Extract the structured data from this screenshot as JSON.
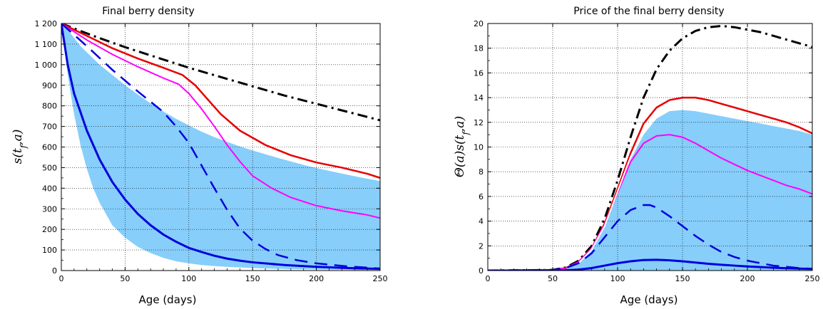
{
  "chart_data": [
    {
      "type": "line",
      "title": "Final berry density",
      "xlabel": "Age (days)",
      "ylabel": "s(t_f,a)",
      "xlim": [
        0,
        250
      ],
      "ylim": [
        0,
        1200
      ],
      "xticks": [
        0,
        50,
        100,
        150,
        200,
        250
      ],
      "xtick_labels": [
        "0",
        "50",
        "100",
        "150",
        "200",
        "250"
      ],
      "yticks": [
        0,
        100,
        200,
        300,
        400,
        500,
        600,
        700,
        800,
        900,
        1000,
        1100,
        1200
      ],
      "ytick_labels": [
        "0",
        "100",
        "200",
        "300",
        "400",
        "500",
        "600",
        "700",
        "800",
        "900",
        "1 000",
        "1 100",
        "1 200"
      ],
      "grid": true,
      "band": {
        "color": "#87cefa",
        "x": [
          0,
          5,
          10,
          15,
          20,
          25,
          30,
          40,
          50,
          60,
          70,
          80,
          90,
          100,
          110,
          120,
          130,
          140,
          150,
          160,
          170,
          180,
          190,
          200,
          210,
          220,
          230,
          240,
          250
        ],
        "lower": [
          1200,
          950,
          760,
          610,
          495,
          400,
          330,
          220,
          160,
          115,
          85,
          62,
          45,
          35,
          27,
          22,
          18,
          15,
          12,
          10,
          8,
          7,
          6,
          5,
          4,
          4,
          3,
          3,
          3
        ],
        "upper": [
          1200,
          1170,
          1130,
          1090,
          1060,
          1030,
          1000,
          950,
          900,
          855,
          812,
          773,
          737,
          705,
          675,
          648,
          625,
          603,
          583,
          565,
          547,
          530,
          513,
          498,
          484,
          471,
          458,
          446,
          435
        ]
      },
      "series": [
        {
          "color": "#000000",
          "dash": "dashdot",
          "width": 3,
          "x": [
            0,
            25,
            50,
            75,
            100,
            125,
            150,
            175,
            200,
            225,
            250
          ],
          "y": [
            1200,
            1140,
            1085,
            1035,
            985,
            940,
            895,
            850,
            810,
            770,
            730
          ]
        },
        {
          "color": "#e60000",
          "dash": "solid",
          "width": 2.5,
          "x": [
            0,
            20,
            40,
            60,
            80,
            95,
            105,
            115,
            125,
            140,
            160,
            180,
            200,
            220,
            240,
            250
          ],
          "y": [
            1200,
            1140,
            1080,
            1030,
            985,
            950,
            900,
            830,
            760,
            680,
            610,
            560,
            525,
            500,
            470,
            450
          ]
        },
        {
          "color": "#ff00ff",
          "dash": "solid",
          "width": 2,
          "x": [
            0,
            20,
            40,
            60,
            80,
            92,
            100,
            110,
            120,
            130,
            140,
            150,
            165,
            180,
            200,
            220,
            240,
            250
          ],
          "y": [
            1200,
            1120,
            1050,
            990,
            935,
            905,
            860,
            785,
            700,
            610,
            530,
            460,
            400,
            355,
            315,
            290,
            270,
            255
          ]
        },
        {
          "color": "#0000dd",
          "dash": "dashed",
          "width": 2.5,
          "x": [
            0,
            20,
            40,
            60,
            80,
            90,
            100,
            110,
            120,
            130,
            140,
            150,
            160,
            170,
            185,
            200,
            225,
            250
          ],
          "y": [
            1200,
            1090,
            975,
            870,
            770,
            700,
            620,
            510,
            400,
            295,
            205,
            145,
            105,
            75,
            50,
            35,
            20,
            10
          ]
        },
        {
          "color": "#0000dd",
          "dash": "solid",
          "width": 3,
          "x": [
            0,
            5,
            10,
            20,
            30,
            40,
            50,
            60,
            70,
            80,
            90,
            100,
            110,
            120,
            130,
            140,
            150,
            175,
            200,
            225,
            250
          ],
          "y": [
            1200,
            1000,
            860,
            680,
            540,
            430,
            345,
            275,
            220,
            175,
            140,
            110,
            90,
            72,
            58,
            48,
            40,
            27,
            18,
            12,
            8
          ]
        }
      ]
    },
    {
      "type": "line",
      "title": "Price of the final berry density",
      "xlabel": "Age (days)",
      "ylabel": "Θ(a)s(t_f,a)",
      "xlim": [
        0,
        250
      ],
      "ylim": [
        0,
        20
      ],
      "xticks": [
        0,
        50,
        100,
        150,
        200,
        250
      ],
      "xtick_labels": [
        "0",
        "50",
        "100",
        "150",
        "200",
        "250"
      ],
      "yticks": [
        0,
        2,
        4,
        6,
        8,
        10,
        12,
        14,
        16,
        18,
        20
      ],
      "ytick_labels": [
        "0",
        "2",
        "4",
        "6",
        "8",
        "10",
        "12",
        "14",
        "16",
        "18",
        "20"
      ],
      "grid": true,
      "band": {
        "color": "#87cefa",
        "x": [
          0,
          50,
          60,
          70,
          80,
          90,
          100,
          110,
          120,
          130,
          140,
          150,
          160,
          170,
          180,
          190,
          200,
          210,
          220,
          230,
          240,
          250
        ],
        "lower": [
          0,
          0,
          0,
          0,
          0,
          0,
          0,
          0,
          0,
          0,
          0,
          0,
          0,
          0,
          0,
          0,
          0,
          0,
          0,
          0,
          0,
          0
        ],
        "upper": [
          0,
          0.05,
          0.2,
          0.6,
          1.6,
          3.5,
          6.2,
          9.0,
          11.0,
          12.3,
          12.9,
          13.0,
          12.9,
          12.7,
          12.5,
          12.3,
          12.1,
          11.9,
          11.7,
          11.5,
          11.3,
          11.0
        ]
      },
      "series": [
        {
          "color": "#000000",
          "dash": "dashdot",
          "width": 3,
          "x": [
            0,
            50,
            60,
            70,
            80,
            90,
            100,
            110,
            120,
            130,
            140,
            150,
            160,
            170,
            180,
            190,
            200,
            210,
            220,
            230,
            240,
            250
          ],
          "y": [
            0,
            0.05,
            0.25,
            0.8,
            2.0,
            4.2,
            7.3,
            10.8,
            14.0,
            16.3,
            17.8,
            18.8,
            19.4,
            19.7,
            19.8,
            19.7,
            19.5,
            19.3,
            19.0,
            18.7,
            18.4,
            18.1
          ]
        },
        {
          "color": "#e60000",
          "dash": "solid",
          "width": 2.5,
          "x": [
            0,
            50,
            60,
            70,
            80,
            90,
            100,
            110,
            120,
            130,
            140,
            150,
            160,
            170,
            180,
            190,
            200,
            210,
            220,
            230,
            240,
            250
          ],
          "y": [
            0,
            0.05,
            0.2,
            0.7,
            1.8,
            3.8,
            6.6,
            9.5,
            11.9,
            13.2,
            13.8,
            14.0,
            14.0,
            13.8,
            13.5,
            13.2,
            12.9,
            12.6,
            12.3,
            12.0,
            11.6,
            11.1
          ]
        },
        {
          "color": "#ff00ff",
          "dash": "solid",
          "width": 2,
          "x": [
            0,
            50,
            60,
            70,
            80,
            90,
            100,
            110,
            120,
            130,
            140,
            150,
            160,
            170,
            180,
            190,
            200,
            210,
            220,
            230,
            240,
            250
          ],
          "y": [
            0,
            0.05,
            0.2,
            0.7,
            1.8,
            3.7,
            6.3,
            8.8,
            10.3,
            10.9,
            11.0,
            10.8,
            10.3,
            9.7,
            9.1,
            8.6,
            8.1,
            7.7,
            7.3,
            6.9,
            6.6,
            6.2
          ]
        },
        {
          "color": "#ffffff",
          "dash": "solid",
          "width": 2,
          "x": [
            70,
            80,
            90,
            100,
            110,
            120,
            130,
            140,
            150
          ],
          "y": [
            0.6,
            1.7,
            3.6,
            6.4,
            9.2,
            11.4,
            12.6,
            13.2,
            13.3
          ]
        },
        {
          "color": "#0000dd",
          "dash": "dashed",
          "width": 2.5,
          "x": [
            0,
            50,
            60,
            70,
            80,
            90,
            100,
            110,
            120,
            125,
            130,
            140,
            150,
            160,
            170,
            180,
            190,
            200,
            210,
            220,
            230,
            240,
            250
          ],
          "y": [
            0,
            0.05,
            0.2,
            0.6,
            1.4,
            2.7,
            4.0,
            4.9,
            5.3,
            5.3,
            5.1,
            4.4,
            3.6,
            2.8,
            2.1,
            1.5,
            1.1,
            0.8,
            0.6,
            0.4,
            0.3,
            0.2,
            0.15
          ]
        },
        {
          "color": "#0000dd",
          "dash": "solid",
          "width": 3,
          "x": [
            0,
            50,
            60,
            70,
            80,
            90,
            100,
            110,
            120,
            130,
            140,
            150,
            160,
            170,
            180,
            190,
            200,
            210,
            220,
            230,
            240,
            250
          ],
          "y": [
            0,
            0.0,
            0.02,
            0.08,
            0.2,
            0.4,
            0.6,
            0.75,
            0.85,
            0.87,
            0.83,
            0.75,
            0.65,
            0.55,
            0.47,
            0.4,
            0.33,
            0.28,
            0.23,
            0.19,
            0.16,
            0.13
          ]
        }
      ]
    }
  ]
}
